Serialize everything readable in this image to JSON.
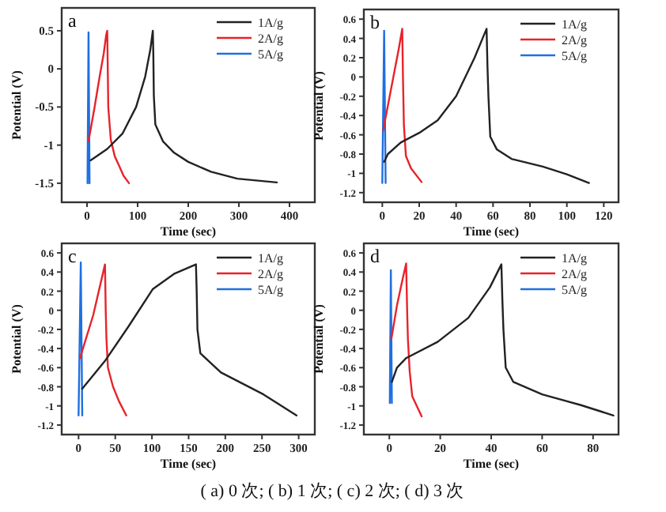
{
  "chart_data": [
    {
      "type": "line",
      "title": "a",
      "xlabel": "Time (sec)",
      "ylabel": "Potential (V)",
      "xlim": [
        -50,
        450
      ],
      "xticks": [
        0,
        100,
        200,
        300,
        400
      ],
      "ylim": [
        -1.75,
        0.8
      ],
      "yticks": [
        -1.5,
        -1.0,
        -0.5,
        0.0,
        0.5
      ],
      "grid": false,
      "legend": "top right",
      "marker": "none",
      "line_style": "solid",
      "series": [
        {
          "name": "1A/g",
          "color": "#222222",
          "x": [
            7,
            40,
            70,
            97,
            115,
            125,
            130,
            131,
            132,
            135,
            150,
            172,
            200,
            245,
            297,
            375
          ],
          "values": [
            -1.2,
            -1.05,
            -0.85,
            -0.5,
            -0.1,
            0.25,
            0.5,
            0.2,
            -0.35,
            -0.73,
            -0.95,
            -1.1,
            -1.22,
            -1.35,
            -1.44,
            -1.49
          ]
        },
        {
          "name": "2A/g",
          "color": "#e8232a",
          "x": [
            3,
            15,
            25,
            33,
            38,
            40,
            41,
            42,
            47,
            55,
            62,
            72,
            83
          ],
          "values": [
            -0.95,
            -0.5,
            -0.1,
            0.2,
            0.45,
            0.5,
            0,
            -0.5,
            -0.93,
            -1.15,
            -1.25,
            -1.4,
            -1.5
          ]
        },
        {
          "name": "5A/g",
          "color": "#1f6fe0",
          "x": [
            1,
            3,
            5
          ],
          "values": [
            -1.5,
            0.48,
            -1.5
          ]
        }
      ]
    },
    {
      "type": "line",
      "title": "b",
      "xlabel": "Time (sec)",
      "ylabel": "Potential (V)",
      "xlim": [
        -10,
        128
      ],
      "xticks": [
        0,
        20,
        40,
        60,
        80,
        100,
        120
      ],
      "ylim": [
        -1.3,
        0.7
      ],
      "yticks": [
        -1.2,
        -1.0,
        -0.8,
        -0.6,
        -0.4,
        -0.2,
        0.0,
        0.2,
        0.4,
        0.6
      ],
      "grid": false,
      "legend": "top right",
      "marker": "none",
      "line_style": "solid",
      "series": [
        {
          "name": "1A/g",
          "color": "#222222",
          "x": [
            1,
            3,
            10,
            20,
            30,
            40,
            50,
            56.5,
            57,
            57.5,
            58.5,
            62,
            70,
            87,
            100,
            112
          ],
          "values": [
            -0.88,
            -0.8,
            -0.68,
            -0.58,
            -0.45,
            -0.2,
            0.2,
            0.5,
            0.1,
            -0.2,
            -0.62,
            -0.75,
            -0.85,
            -0.93,
            -1.01,
            -1.1
          ]
        },
        {
          "name": "2A/g",
          "color": "#e8232a",
          "x": [
            0.5,
            5,
            9,
            10.8,
            11.2,
            11.7,
            12.8,
            15.6,
            21.3
          ],
          "values": [
            -0.55,
            -0.1,
            0.3,
            0.5,
            0,
            -0.5,
            -0.82,
            -0.95,
            -1.09
          ]
        },
        {
          "name": "5A/g",
          "color": "#1f6fe0",
          "x": [
            0,
            1,
            1.8
          ],
          "values": [
            -1.1,
            0.48,
            -1.1
          ]
        }
      ]
    },
    {
      "type": "line",
      "title": "c",
      "xlabel": "Time (sec)",
      "ylabel": "Potential (V)",
      "xlim": [
        -23,
        322
      ],
      "xticks": [
        0,
        50,
        100,
        150,
        200,
        250,
        300
      ],
      "ylim": [
        -1.3,
        0.7
      ],
      "yticks": [
        -1.2,
        -1.0,
        -0.8,
        -0.6,
        -0.4,
        -0.2,
        0.0,
        0.2,
        0.4,
        0.6
      ],
      "grid": false,
      "legend": "top right",
      "marker": "none",
      "line_style": "solid",
      "series": [
        {
          "name": "1A/g",
          "color": "#222222",
          "x": [
            5,
            36,
            68,
            101,
            130,
            160,
            161,
            162,
            166,
            194,
            252,
            297
          ],
          "values": [
            -0.82,
            -0.53,
            -0.17,
            0.22,
            0.38,
            0.48,
            0.2,
            -0.2,
            -0.45,
            -0.65,
            -0.88,
            -1.1
          ]
        },
        {
          "name": "2A/g",
          "color": "#e8232a",
          "x": [
            2,
            20,
            36,
            37,
            38,
            40,
            47,
            55,
            65
          ],
          "values": [
            -0.5,
            -0.05,
            0.48,
            0,
            -0.3,
            -0.6,
            -0.8,
            -0.95,
            -1.1
          ]
        },
        {
          "name": "5A/g",
          "color": "#1f6fe0",
          "x": [
            0,
            3,
            5
          ],
          "values": [
            -1.1,
            0.5,
            -1.1
          ]
        }
      ]
    },
    {
      "type": "line",
      "title": "d",
      "xlabel": "Time (sec)",
      "ylabel": "Potential (V)",
      "xlim": [
        -10,
        90
      ],
      "xticks": [
        0,
        20,
        40,
        60,
        80
      ],
      "ylim": [
        -1.3,
        0.7
      ],
      "yticks": [
        -1.2,
        -1.0,
        -0.8,
        -0.6,
        -0.4,
        -0.2,
        0.0,
        0.2,
        0.4,
        0.6
      ],
      "grid": false,
      "legend": "top right",
      "marker": "none",
      "line_style": "solid",
      "annotations": [
        "( a) 0 次; ( b) 1 次; ( c) 2 次; ( d) 3 次"
      ],
      "series": [
        {
          "name": "1A/g",
          "color": "#222222",
          "x": [
            1,
            3,
            6.6,
            19,
            31,
            39.5,
            44,
            44.4,
            44.8,
            45.7,
            48.7,
            60,
            75,
            88
          ],
          "values": [
            -0.75,
            -0.6,
            -0.5,
            -0.33,
            -0.08,
            0.24,
            0.48,
            0.1,
            -0.2,
            -0.6,
            -0.75,
            -0.88,
            -0.99,
            -1.1
          ]
        },
        {
          "name": "2A/g",
          "color": "#e8232a",
          "x": [
            0.8,
            3,
            5,
            6.6,
            7,
            7.3,
            8,
            9,
            12.7
          ],
          "values": [
            -0.3,
            0.05,
            0.3,
            0.49,
            0,
            -0.3,
            -0.64,
            -0.9,
            -1.11
          ]
        },
        {
          "name": "5A/g",
          "color": "#1f6fe0",
          "x": [
            0.2,
            0.6,
            1
          ],
          "values": [
            -0.97,
            0.42,
            -0.97
          ]
        }
      ]
    }
  ]
}
